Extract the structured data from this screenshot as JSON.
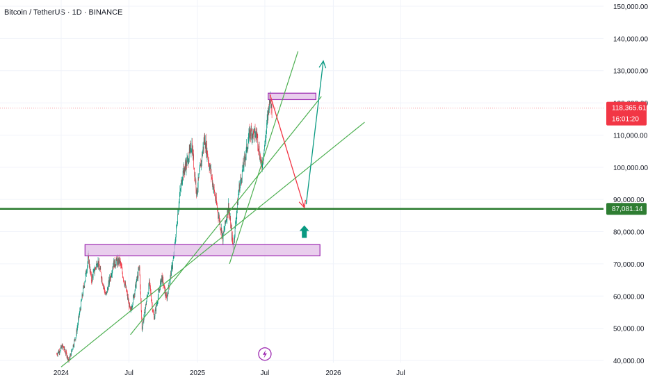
{
  "header": {
    "title": "Bitcoin / TetherUS · 1D · BINANCE"
  },
  "colors": {
    "up": "#089981",
    "down": "#f23645",
    "trendline": "#4caf50",
    "support": "#2e7d32",
    "zone_fill": "#e1bee7",
    "zone_border": "#9c27b0",
    "arrow_down": "#f23645",
    "arrow_up": "#089981",
    "grid": "#f0f3fa"
  },
  "chart_data": {
    "type": "candlestick",
    "symbol": "BTCUSDT",
    "interval": "1D",
    "exchange": "BINANCE",
    "ylim": [
      38000,
      152000
    ],
    "y_ticks": [
      {
        "value": 40000,
        "label": "40,000.00"
      },
      {
        "value": 50000,
        "label": "50,000.00"
      },
      {
        "value": 60000,
        "label": "60,000.00"
      },
      {
        "value": 70000,
        "label": "70,000.00"
      },
      {
        "value": 80000,
        "label": "80,000.00"
      },
      {
        "value": 90000,
        "label": "90,000.00"
      },
      {
        "value": 100000,
        "label": "100,000.00"
      },
      {
        "value": 110000,
        "label": "110,000.00"
      },
      {
        "value": 120000,
        "label": "120,000.00"
      },
      {
        "value": 130000,
        "label": "130,000.00"
      },
      {
        "value": 140000,
        "label": "140,000.00"
      },
      {
        "value": 150000,
        "label": "150,000.00"
      }
    ],
    "x_ticks": [
      {
        "date": "2024-01",
        "label": "2024"
      },
      {
        "date": "2024-07",
        "label": "Jul"
      },
      {
        "date": "2025-01",
        "label": "2025"
      },
      {
        "date": "2025-07",
        "label": "Jul"
      },
      {
        "date": "2026-01",
        "label": "2026"
      },
      {
        "date": "2026-07",
        "label": "Jul"
      }
    ],
    "price_path": [
      [
        "2023-12-20",
        42000
      ],
      [
        "2024-01-05",
        44500
      ],
      [
        "2024-01-22",
        40000
      ],
      [
        "2024-02-10",
        48000
      ],
      [
        "2024-02-28",
        61000
      ],
      [
        "2024-03-14",
        72000
      ],
      [
        "2024-03-22",
        65000
      ],
      [
        "2024-04-08",
        71000
      ],
      [
        "2024-04-30",
        60000
      ],
      [
        "2024-05-20",
        70000
      ],
      [
        "2024-06-06",
        71000
      ],
      [
        "2024-06-25",
        61000
      ],
      [
        "2024-07-05",
        55000
      ],
      [
        "2024-07-29",
        69000
      ],
      [
        "2024-08-05",
        50000
      ],
      [
        "2024-08-25",
        64000
      ],
      [
        "2024-09-06",
        53000
      ],
      [
        "2024-09-27",
        66000
      ],
      [
        "2024-10-10",
        59000
      ],
      [
        "2024-10-29",
        72000
      ],
      [
        "2024-11-12",
        89000
      ],
      [
        "2024-11-22",
        98000
      ],
      [
        "2024-12-05",
        102000
      ],
      [
        "2024-12-17",
        107000
      ],
      [
        "2024-12-30",
        92000
      ],
      [
        "2025-01-20",
        109000
      ],
      [
        "2025-01-31",
        102000
      ],
      [
        "2025-02-25",
        86000
      ],
      [
        "2025-03-10",
        78000
      ],
      [
        "2025-03-25",
        88000
      ],
      [
        "2025-04-07",
        75000
      ],
      [
        "2025-04-22",
        93000
      ],
      [
        "2025-05-22",
        111000
      ],
      [
        "2025-06-10",
        110000
      ],
      [
        "2025-06-22",
        100000
      ],
      [
        "2025-07-03",
        109000
      ],
      [
        "2025-07-14",
        122000
      ],
      [
        "2025-07-20",
        118365
      ]
    ],
    "last_price": {
      "value": 118365.61,
      "label": "118,365.61",
      "countdown": "16:01:20"
    },
    "support_level": {
      "value": 87081.14,
      "label": "87,081.14"
    },
    "zones": [
      {
        "x0": "2024-03-05",
        "x1": "2025-11-26",
        "y0": 72500,
        "y1": 76000
      },
      {
        "x0": "2025-07-10",
        "x1": "2025-11-15",
        "y0": 121000,
        "y1": 123000
      }
    ],
    "trendlines": [
      {
        "from": [
          "2024-01-01",
          38000
        ],
        "to": [
          "2026-03-26",
          114000
        ]
      },
      {
        "from": [
          "2024-07-05",
          48000
        ],
        "to": [
          "2025-11-30",
          122000
        ]
      },
      {
        "from": [
          "2025-03-28",
          70000
        ],
        "to": [
          "2025-09-28",
          136000
        ]
      }
    ],
    "arrows": [
      {
        "direction": "down",
        "from": [
          "2025-07-15",
          122500
        ],
        "to": [
          "2025-10-15",
          87500
        ]
      },
      {
        "direction": "up",
        "from": [
          "2025-10-20",
          88500
        ],
        "to": [
          "2025-12-05",
          133000
        ]
      }
    ],
    "markers": [
      {
        "type": "up-arrow",
        "at": [
          "2025-10-15",
          80000
        ]
      },
      {
        "type": "lightning",
        "at": [
          "2025-07-01",
          42000
        ]
      }
    ]
  }
}
